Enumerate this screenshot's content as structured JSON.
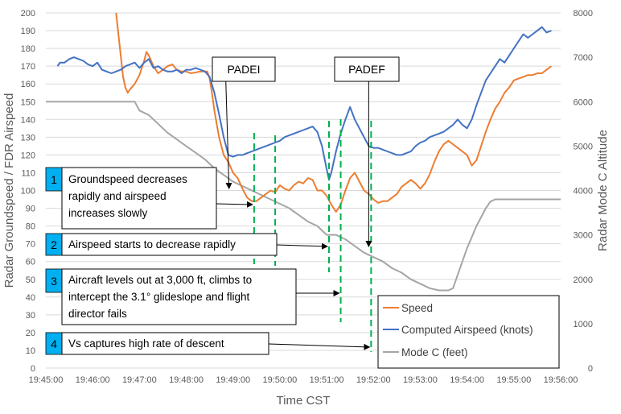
{
  "chart_data": {
    "type": "line",
    "xlabel": "Time CST",
    "ylabel_left": "Radar Groundspeed / FDR Airspeed",
    "ylabel_right": "Radar Mode C  Altitude",
    "x_ticks": [
      "19:45:00",
      "19:46:00",
      "19:47:00",
      "19:48:00",
      "19:49:00",
      "19:50:00",
      "19:51:00",
      "19:52:00",
      "19:53:00",
      "19:54:00",
      "19:55:00",
      "19:56:00"
    ],
    "xlim_minutes": [
      0,
      11
    ],
    "ylim_left": [
      0,
      200
    ],
    "y_ticks_left": [
      "0",
      "10",
      "20",
      "30",
      "40",
      "50",
      "60",
      "70",
      "80",
      "90",
      "100",
      "110",
      "120",
      "130",
      "140",
      "150",
      "160",
      "170",
      "180",
      "190",
      "200"
    ],
    "ylim_right": [
      0,
      8000
    ],
    "y_ticks_right": [
      "0",
      "1000",
      "2000",
      "3000",
      "4000",
      "5000",
      "6000",
      "7000",
      "8000"
    ],
    "series": [
      {
        "name": "Speed",
        "axis": "left",
        "color": "#ED7D31",
        "points": [
          [
            1.5,
            200
          ],
          [
            1.55,
            188
          ],
          [
            1.6,
            176
          ],
          [
            1.65,
            164
          ],
          [
            1.7,
            158
          ],
          [
            1.75,
            155
          ],
          [
            1.8,
            157
          ],
          [
            1.9,
            160
          ],
          [
            2.0,
            165
          ],
          [
            2.1,
            173
          ],
          [
            2.15,
            178
          ],
          [
            2.2,
            176
          ],
          [
            2.3,
            170
          ],
          [
            2.4,
            166
          ],
          [
            2.5,
            168
          ],
          [
            2.6,
            170
          ],
          [
            2.7,
            171
          ],
          [
            2.8,
            168
          ],
          [
            2.9,
            167
          ],
          [
            3.0,
            167
          ],
          [
            3.1,
            166
          ],
          [
            3.3,
            167
          ],
          [
            3.45,
            167
          ],
          [
            3.5,
            163
          ],
          [
            3.55,
            155
          ],
          [
            3.6,
            145
          ],
          [
            3.7,
            130
          ],
          [
            3.8,
            120
          ],
          [
            3.9,
            116
          ],
          [
            4.0,
            110
          ],
          [
            4.1,
            107
          ],
          [
            4.2,
            101
          ],
          [
            4.3,
            96
          ],
          [
            4.4,
            94
          ],
          [
            4.5,
            94
          ],
          [
            4.6,
            96
          ],
          [
            4.7,
            98
          ],
          [
            4.8,
            100
          ],
          [
            4.9,
            99
          ],
          [
            5.0,
            103
          ],
          [
            5.1,
            101
          ],
          [
            5.2,
            100
          ],
          [
            5.3,
            103
          ],
          [
            5.4,
            105
          ],
          [
            5.5,
            104
          ],
          [
            5.6,
            107
          ],
          [
            5.7,
            106
          ],
          [
            5.8,
            100
          ],
          [
            5.9,
            100
          ],
          [
            6.0,
            97
          ],
          [
            6.1,
            92
          ],
          [
            6.2,
            88
          ],
          [
            6.3,
            92
          ],
          [
            6.4,
            100
          ],
          [
            6.5,
            107
          ],
          [
            6.6,
            110
          ],
          [
            6.7,
            105
          ],
          [
            6.8,
            100
          ],
          [
            6.9,
            98
          ],
          [
            7.0,
            95
          ],
          [
            7.1,
            93
          ],
          [
            7.2,
            94
          ],
          [
            7.3,
            94
          ],
          [
            7.4,
            96
          ],
          [
            7.5,
            98
          ],
          [
            7.6,
            102
          ],
          [
            7.7,
            104
          ],
          [
            7.8,
            106
          ],
          [
            7.9,
            104
          ],
          [
            8.0,
            101
          ],
          [
            8.1,
            104
          ],
          [
            8.2,
            109
          ],
          [
            8.3,
            116
          ],
          [
            8.4,
            122
          ],
          [
            8.5,
            126
          ],
          [
            8.6,
            128
          ],
          [
            8.7,
            126
          ],
          [
            8.8,
            124
          ],
          [
            8.9,
            122
          ],
          [
            9.0,
            120
          ],
          [
            9.1,
            114
          ],
          [
            9.2,
            117
          ],
          [
            9.3,
            125
          ],
          [
            9.4,
            133
          ],
          [
            9.5,
            140
          ],
          [
            9.6,
            146
          ],
          [
            9.7,
            150
          ],
          [
            9.8,
            155
          ],
          [
            9.9,
            158
          ],
          [
            10.0,
            162
          ],
          [
            10.1,
            163
          ],
          [
            10.2,
            164
          ],
          [
            10.3,
            165
          ],
          [
            10.4,
            165
          ],
          [
            10.5,
            166
          ],
          [
            10.6,
            166
          ],
          [
            10.7,
            168
          ],
          [
            10.8,
            170
          ]
        ]
      },
      {
        "name": "Computed Airspeed (knots)",
        "axis": "left",
        "color": "#4472C4",
        "points": [
          [
            0.25,
            170
          ],
          [
            0.3,
            172
          ],
          [
            0.4,
            172
          ],
          [
            0.5,
            174
          ],
          [
            0.6,
            175
          ],
          [
            0.7,
            174
          ],
          [
            0.8,
            173
          ],
          [
            0.9,
            171
          ],
          [
            1.0,
            170
          ],
          [
            1.1,
            172
          ],
          [
            1.2,
            168
          ],
          [
            1.3,
            167
          ],
          [
            1.4,
            166
          ],
          [
            1.5,
            167
          ],
          [
            1.6,
            168
          ],
          [
            1.7,
            170
          ],
          [
            1.8,
            171
          ],
          [
            1.9,
            172
          ],
          [
            2.0,
            169
          ],
          [
            2.1,
            172
          ],
          [
            2.2,
            174
          ],
          [
            2.3,
            169
          ],
          [
            2.4,
            170
          ],
          [
            2.5,
            168
          ],
          [
            2.6,
            167
          ],
          [
            2.7,
            167
          ],
          [
            2.8,
            168
          ],
          [
            2.9,
            166
          ],
          [
            3.0,
            168
          ],
          [
            3.1,
            168
          ],
          [
            3.2,
            169
          ],
          [
            3.3,
            168
          ],
          [
            3.4,
            167
          ],
          [
            3.5,
            164
          ],
          [
            3.6,
            155
          ],
          [
            3.7,
            143
          ],
          [
            3.8,
            130
          ],
          [
            3.9,
            120
          ],
          [
            4.0,
            119
          ],
          [
            4.1,
            120
          ],
          [
            4.2,
            120
          ],
          [
            4.3,
            121
          ],
          [
            4.4,
            122
          ],
          [
            4.5,
            123
          ],
          [
            4.6,
            124
          ],
          [
            4.7,
            125
          ],
          [
            4.8,
            126
          ],
          [
            4.9,
            127
          ],
          [
            5.0,
            128
          ],
          [
            5.1,
            130
          ],
          [
            5.2,
            131
          ],
          [
            5.3,
            132
          ],
          [
            5.4,
            133
          ],
          [
            5.5,
            134
          ],
          [
            5.6,
            135
          ],
          [
            5.7,
            136
          ],
          [
            5.8,
            133
          ],
          [
            5.9,
            125
          ],
          [
            6.0,
            112
          ],
          [
            6.05,
            106
          ],
          [
            6.1,
            110
          ],
          [
            6.2,
            122
          ],
          [
            6.3,
            132
          ],
          [
            6.4,
            140
          ],
          [
            6.5,
            147
          ],
          [
            6.6,
            140
          ],
          [
            6.7,
            135
          ],
          [
            6.8,
            130
          ],
          [
            6.9,
            125
          ],
          [
            7.0,
            124
          ],
          [
            7.1,
            124
          ],
          [
            7.2,
            123
          ],
          [
            7.3,
            122
          ],
          [
            7.4,
            121
          ],
          [
            7.5,
            120
          ],
          [
            7.6,
            120
          ],
          [
            7.7,
            121
          ],
          [
            7.8,
            122
          ],
          [
            7.9,
            125
          ],
          [
            8.0,
            127
          ],
          [
            8.1,
            128
          ],
          [
            8.2,
            130
          ],
          [
            8.3,
            131
          ],
          [
            8.4,
            132
          ],
          [
            8.5,
            133
          ],
          [
            8.6,
            135
          ],
          [
            8.7,
            137
          ],
          [
            8.8,
            140
          ],
          [
            8.9,
            137
          ],
          [
            9.0,
            135
          ],
          [
            9.1,
            140
          ],
          [
            9.2,
            148
          ],
          [
            9.3,
            155
          ],
          [
            9.4,
            162
          ],
          [
            9.5,
            166
          ],
          [
            9.6,
            170
          ],
          [
            9.7,
            174
          ],
          [
            9.8,
            172
          ],
          [
            9.9,
            176
          ],
          [
            10.0,
            180
          ],
          [
            10.1,
            184
          ],
          [
            10.2,
            188
          ],
          [
            10.3,
            186
          ],
          [
            10.4,
            188
          ],
          [
            10.5,
            190
          ],
          [
            10.6,
            192
          ],
          [
            10.7,
            189
          ],
          [
            10.8,
            190
          ]
        ]
      },
      {
        "name": "Mode C (feet)",
        "axis": "right",
        "color": "#A5A5A5",
        "points": [
          [
            0,
            6000
          ],
          [
            0.5,
            6000
          ],
          [
            1.0,
            6000
          ],
          [
            1.5,
            6000
          ],
          [
            1.9,
            6000
          ],
          [
            2.0,
            5800
          ],
          [
            2.2,
            5700
          ],
          [
            2.4,
            5500
          ],
          [
            2.6,
            5300
          ],
          [
            2.8,
            5150
          ],
          [
            3.0,
            5000
          ],
          [
            3.2,
            4850
          ],
          [
            3.4,
            4700
          ],
          [
            3.6,
            4500
          ],
          [
            3.8,
            4350
          ],
          [
            4.0,
            4200
          ],
          [
            4.2,
            4100
          ],
          [
            4.4,
            4000
          ],
          [
            4.6,
            3900
          ],
          [
            4.8,
            3800
          ],
          [
            5.0,
            3700
          ],
          [
            5.2,
            3600
          ],
          [
            5.4,
            3450
          ],
          [
            5.6,
            3300
          ],
          [
            5.8,
            3200
          ],
          [
            6.0,
            3000
          ],
          [
            6.2,
            3000
          ],
          [
            6.4,
            2900
          ],
          [
            6.6,
            2750
          ],
          [
            6.8,
            2600
          ],
          [
            7.0,
            2500
          ],
          [
            7.2,
            2400
          ],
          [
            7.4,
            2250
          ],
          [
            7.6,
            2150
          ],
          [
            7.8,
            2000
          ],
          [
            8.0,
            1900
          ],
          [
            8.2,
            1800
          ],
          [
            8.4,
            1750
          ],
          [
            8.6,
            1750
          ],
          [
            8.7,
            1800
          ],
          [
            8.8,
            2100
          ],
          [
            8.9,
            2400
          ],
          [
            9.0,
            2700
          ],
          [
            9.1,
            2950
          ],
          [
            9.2,
            3200
          ],
          [
            9.3,
            3400
          ],
          [
            9.4,
            3600
          ],
          [
            9.5,
            3750
          ],
          [
            9.6,
            3800
          ],
          [
            9.7,
            3800
          ],
          [
            9.8,
            3800
          ],
          [
            10.0,
            3800
          ],
          [
            10.2,
            3800
          ],
          [
            10.4,
            3800
          ],
          [
            10.6,
            3800
          ],
          [
            10.8,
            3800
          ],
          [
            11.0,
            3800
          ]
        ]
      }
    ],
    "legend": {
      "position": "bottom-right",
      "entries": [
        {
          "label": "Speed",
          "color": "#ED7D31"
        },
        {
          "label": "Computed Airspeed (knots)",
          "color": "#4472C4"
        },
        {
          "label": "Mode C (feet)",
          "color": "#A5A5A5"
        }
      ]
    },
    "dashed_lines_minutes": [
      4.45,
      4.9,
      6.05,
      6.3,
      6.95
    ],
    "waypoints": [
      {
        "label": "PADEI",
        "at_minutes": 4.0
      },
      {
        "label": "PADEF",
        "at_minutes": 6.95
      }
    ],
    "annotations": [
      {
        "number": "1",
        "text": [
          "Groundspeed decreases",
          "rapidly and airspeed",
          "increases slowly"
        ],
        "points_to_minutes": 4.45
      },
      {
        "number": "2",
        "text": [
          "Airspeed starts to decrease rapidly"
        ],
        "points_to_minutes": 6.05
      },
      {
        "number": "3",
        "text": [
          "Aircraft levels out at 3,000 ft, climbs to",
          "intercept the 3.1° glideslope and flight",
          "director fails"
        ],
        "points_to_minutes": 6.3
      },
      {
        "number": "4",
        "text": [
          "Vs captures high rate of descent"
        ],
        "points_to_minutes": 6.95
      }
    ],
    "colors": {
      "badge": "#00B0F0",
      "dashed_line": "#00B050",
      "gridline": "#D9D9D9"
    }
  }
}
